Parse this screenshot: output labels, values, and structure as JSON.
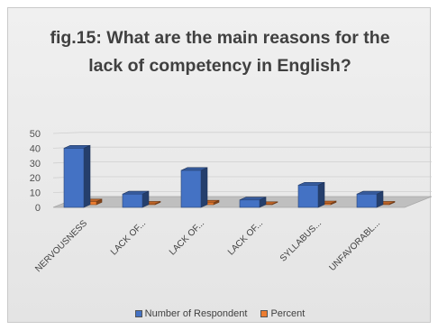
{
  "chart_data": {
    "type": "bar",
    "title": "fig.15: What are the main reasons for the\nlack of competency in English?",
    "categories": [
      "NERVOUSNESS",
      "LACK OF...",
      "LACK OF...",
      "LACK OF...",
      "SYLLABUS...",
      "UNFAVORABL..."
    ],
    "series": [
      {
        "name": "Number of Respondent",
        "color": "#4472C4",
        "values": [
          40,
          9,
          25,
          5,
          15,
          9
        ]
      },
      {
        "name": "Percent",
        "color": "#ED7D31",
        "values": [
          2.1,
          0.5,
          1.3,
          0.3,
          0.8,
          0.5
        ]
      }
    ],
    "ylim": [
      0,
      50
    ],
    "yticks": [
      0,
      10,
      20,
      30,
      40,
      50
    ],
    "grid": true,
    "legend": "bottom",
    "three_d": true
  }
}
